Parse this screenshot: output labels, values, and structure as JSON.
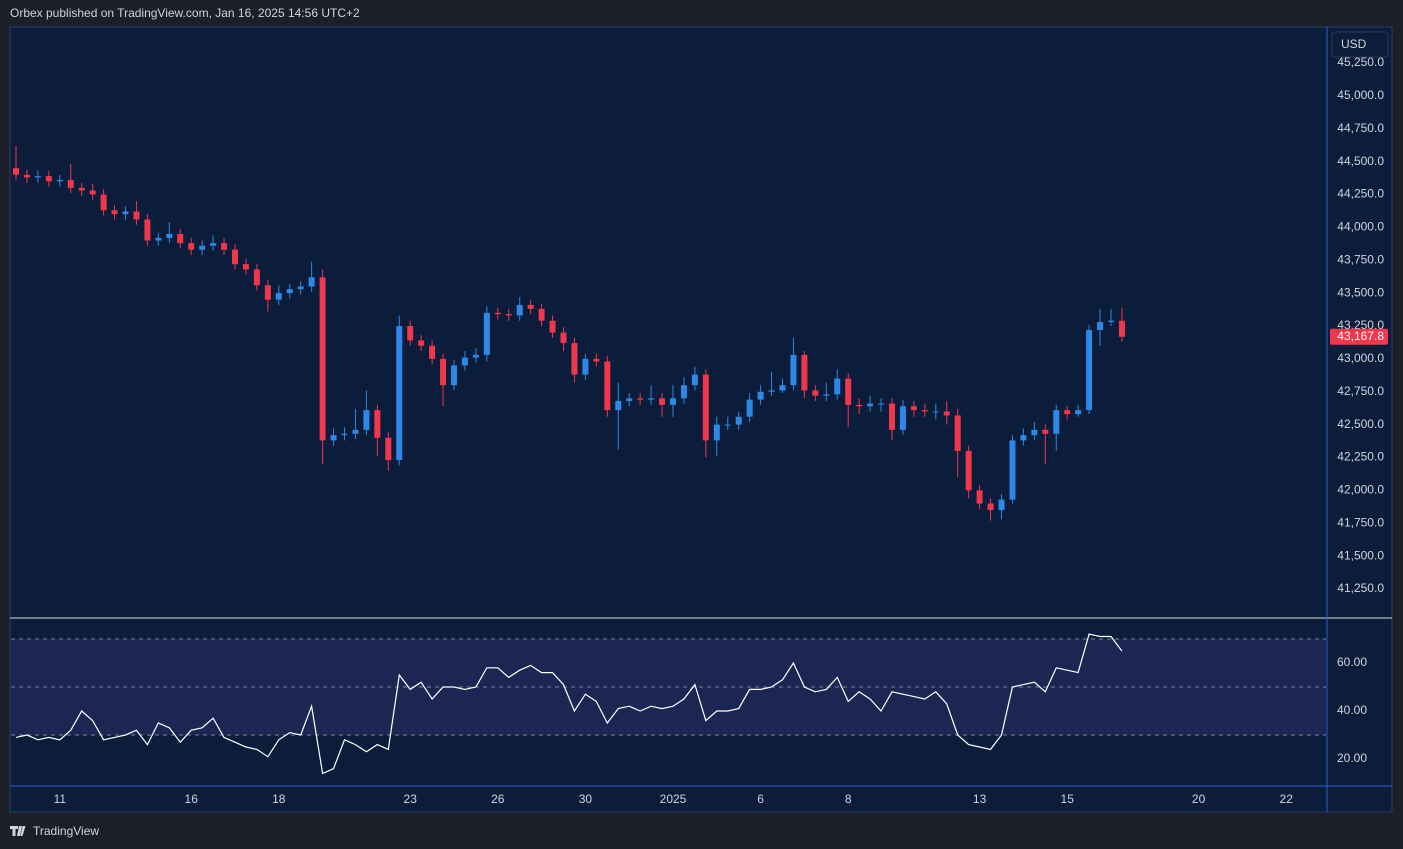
{
  "header": "Orbex published on TradingView.com, Jan 16, 2025 14:56 UTC+2",
  "currency": "USD",
  "brand": "TradingView",
  "chart_data": [
    {
      "type": "candlestick",
      "up_color": "#2d88e6",
      "down_color": "#f0374b",
      "ylim": [
        41037,
        45516
      ],
      "yticks": [
        {
          "value": 41250,
          "label": "41,250.0"
        },
        {
          "value": 41500,
          "label": "41,500.0"
        },
        {
          "value": 41750,
          "label": "41,750.0"
        },
        {
          "value": 42000,
          "label": "42,000.0"
        },
        {
          "value": 42250,
          "label": "42,250.0"
        },
        {
          "value": 42500,
          "label": "42,500.0"
        },
        {
          "value": 42750,
          "label": "42,750.0"
        },
        {
          "value": 43000,
          "label": "43,000.0"
        },
        {
          "value": 43250,
          "label": "43,250.0"
        },
        {
          "value": 43500,
          "label": "43,500.0"
        },
        {
          "value": 43750,
          "label": "43,750.0"
        },
        {
          "value": 44000,
          "label": "44,000.0"
        },
        {
          "value": 44250,
          "label": "44,250.0"
        },
        {
          "value": 44500,
          "label": "44,500.0"
        },
        {
          "value": 44750,
          "label": "44,750.0"
        },
        {
          "value": 45000,
          "label": "45,000.0"
        },
        {
          "value": 45250,
          "label": "45,250.0"
        }
      ],
      "last_price": {
        "value": 43167.8,
        "label": "43,167.8"
      },
      "categories": [
        null,
        null,
        null,
        null,
        "11",
        null,
        null,
        null,
        null,
        null,
        null,
        null,
        null,
        null,
        null,
        null,
        "16",
        null,
        null,
        null,
        null,
        null,
        null,
        null,
        "18",
        null,
        null,
        null,
        null,
        null,
        null,
        null,
        null,
        null,
        null,
        null,
        "23",
        null,
        null,
        null,
        null,
        null,
        null,
        null,
        "26",
        null,
        null,
        null,
        null,
        null,
        null,
        null,
        "30",
        null,
        null,
        null,
        null,
        null,
        null,
        null,
        "2025",
        null,
        null,
        null,
        null,
        null,
        null,
        null,
        "6",
        null,
        null,
        null,
        null,
        null,
        null,
        null,
        "8",
        null,
        null,
        null,
        null,
        null,
        null,
        null,
        null,
        null,
        null,
        null,
        "13",
        null,
        null,
        null,
        null,
        null,
        null,
        null,
        "15",
        null,
        null,
        null,
        null,
        null,
        null,
        null,
        null,
        null,
        null,
        null,
        "20",
        null,
        null,
        null,
        null,
        null,
        null,
        null,
        "22",
        null,
        null,
        null
      ],
      "open": [
        44450,
        44400,
        44380,
        44390,
        44350,
        44360,
        44300,
        44280,
        44250,
        44130,
        44100,
        44120,
        44060,
        43900,
        43920,
        43950,
        43880,
        43830,
        43860,
        43880,
        43830,
        43720,
        43680,
        43560,
        43450,
        43500,
        43530,
        43550,
        43620,
        42380,
        42420,
        42430,
        42460,
        42610,
        42400,
        42230,
        43250,
        43140,
        43100,
        43000,
        42800,
        42950,
        43010,
        43030,
        43350,
        43340,
        43330,
        43410,
        43380,
        43290,
        43200,
        43120,
        42880,
        43000,
        42980,
        42610,
        42680,
        42700,
        42690,
        42700,
        42650,
        42700,
        42800,
        42880,
        42380,
        42500,
        42500,
        42560,
        42690,
        42750,
        42760,
        42800,
        43030,
        42760,
        42720,
        42730,
        42850,
        42650,
        42640,
        42660,
        42660,
        42460,
        42640,
        42610,
        42600,
        42600,
        42570,
        42300,
        42000,
        41900,
        41850,
        41930,
        42380,
        42420,
        42460,
        42430,
        42610,
        42580,
        42610,
        43220,
        43280,
        43290,
        null,
        null,
        null,
        null,
        null,
        null,
        null,
        null,
        null,
        null,
        null,
        null,
        null,
        null,
        null,
        null,
        null,
        null
      ],
      "high": [
        44620,
        44440,
        44430,
        44430,
        44400,
        44480,
        44340,
        44330,
        44290,
        44170,
        44160,
        44200,
        44100,
        43960,
        44040,
        43990,
        43920,
        43900,
        43940,
        43920,
        43870,
        43760,
        43720,
        43600,
        43560,
        43570,
        43590,
        43740,
        43680,
        42470,
        42480,
        42620,
        42760,
        42650,
        42440,
        43330,
        43290,
        43180,
        43140,
        43040,
        42990,
        43060,
        43080,
        43400,
        43390,
        43380,
        43470,
        43450,
        43420,
        43330,
        43240,
        43160,
        43040,
        43040,
        43020,
        42820,
        42740,
        42740,
        42800,
        42740,
        42800,
        42860,
        42940,
        42920,
        42560,
        42560,
        42600,
        42740,
        42800,
        42900,
        42850,
        43160,
        43060,
        42800,
        42820,
        42920,
        42890,
        42700,
        42720,
        42700,
        42700,
        42690,
        42680,
        42660,
        42660,
        42680,
        42620,
        42340,
        42040,
        41940,
        41970,
        42420,
        42470,
        42520,
        42500,
        42650,
        42640,
        42650,
        43260,
        43380,
        43380,
        43390,
        null,
        null,
        null,
        null,
        null,
        null,
        null,
        null,
        null,
        null,
        null,
        null,
        null,
        null,
        null,
        null,
        null,
        null
      ],
      "low": [
        44360,
        44340,
        44340,
        44310,
        44310,
        44260,
        44240,
        44210,
        44090,
        44060,
        44060,
        44020,
        43860,
        43860,
        43880,
        43840,
        43790,
        43790,
        43820,
        43790,
        43680,
        43640,
        43520,
        43360,
        43410,
        43460,
        43490,
        43510,
        42200,
        42340,
        42380,
        42390,
        42420,
        42260,
        42150,
        42190,
        43100,
        43060,
        42960,
        42640,
        42760,
        42910,
        42970,
        42980,
        43300,
        43290,
        43290,
        43340,
        43250,
        43160,
        43060,
        42820,
        42840,
        42940,
        42560,
        42310,
        42640,
        42650,
        42650,
        42560,
        42560,
        42660,
        42760,
        42250,
        42260,
        42460,
        42460,
        42520,
        42650,
        42720,
        42740,
        42760,
        42700,
        42680,
        42680,
        42690,
        42480,
        42580,
        42600,
        42600,
        42380,
        42420,
        42560,
        42560,
        42540,
        42500,
        42100,
        41940,
        41860,
        41770,
        41780,
        41900,
        42340,
        42380,
        42200,
        42300,
        42540,
        42560,
        42580,
        43100,
        43250,
        43130,
        null,
        null,
        null,
        null,
        null,
        null,
        null,
        null,
        null,
        null,
        null,
        null,
        null,
        null,
        null,
        null,
        null,
        null
      ],
      "close": [
        44400,
        44380,
        44390,
        44350,
        44360,
        44300,
        44280,
        44250,
        44130,
        44100,
        44120,
        44060,
        43900,
        43920,
        43950,
        43880,
        43830,
        43860,
        43880,
        43830,
        43720,
        43680,
        43560,
        43450,
        43500,
        43530,
        43550,
        43620,
        42380,
        42420,
        42430,
        42460,
        42610,
        42400,
        42230,
        43250,
        43140,
        43100,
        43000,
        42800,
        42950,
        43010,
        43030,
        43350,
        43340,
        43330,
        43410,
        43380,
        43290,
        43200,
        43120,
        42880,
        43000,
        42980,
        42610,
        42680,
        42700,
        42690,
        42700,
        42650,
        42700,
        42800,
        42880,
        42380,
        42500,
        42500,
        42560,
        42690,
        42750,
        42760,
        42800,
        43030,
        42760,
        42720,
        42730,
        42850,
        42650,
        42640,
        42660,
        42660,
        42460,
        42640,
        42610,
        42600,
        42600,
        42570,
        42300,
        42000,
        41900,
        41850,
        41930,
        42380,
        42420,
        42460,
        42430,
        42610,
        42580,
        42610,
        43220,
        43280,
        43290,
        43167.8,
        null,
        null,
        null,
        null,
        null,
        null,
        null,
        null,
        null,
        null,
        null,
        null,
        null,
        null,
        null,
        null,
        null,
        null
      ]
    },
    {
      "type": "line",
      "color": "#ffffff",
      "band_color": "#1b2752",
      "ylim": [
        9.2,
        78.3
      ],
      "yticks": [
        {
          "value": 20,
          "label": "20.00"
        },
        {
          "value": 40,
          "label": "40.00"
        },
        {
          "value": 60,
          "label": "60.00"
        }
      ],
      "levels": [
        30,
        50,
        70
      ],
      "values": [
        29,
        30,
        28,
        29,
        28,
        32,
        40,
        36,
        28,
        29,
        30,
        32,
        26,
        35,
        33,
        27,
        32,
        33,
        37,
        29,
        27,
        25,
        24,
        21,
        28,
        31,
        30,
        42,
        14,
        16,
        28,
        26,
        23,
        26,
        24,
        55,
        49,
        52,
        45,
        50,
        50,
        49,
        50,
        58,
        58,
        54,
        57,
        59,
        56,
        56,
        51,
        40,
        47,
        44,
        35,
        41,
        42,
        40,
        42,
        41,
        42,
        45,
        51,
        36,
        40,
        40,
        41,
        49,
        49,
        50,
        53,
        60,
        50,
        48,
        49,
        54,
        44,
        48,
        45,
        40,
        48,
        47,
        46,
        45,
        48,
        43,
        30,
        26,
        25,
        24,
        30,
        50,
        51,
        52,
        48,
        58,
        57,
        56,
        72,
        71,
        71,
        65,
        null,
        null,
        null,
        null,
        null,
        null,
        null,
        null,
        null,
        null,
        null,
        null,
        null,
        null,
        null,
        null,
        null,
        null
      ]
    }
  ]
}
